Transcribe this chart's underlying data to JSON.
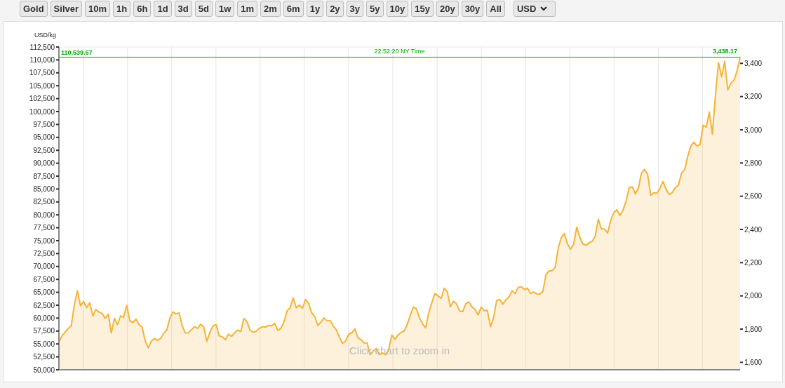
{
  "chart_data": {
    "type": "area",
    "ylabel": "USD/kg",
    "categories": [
      null,
      null,
      null,
      null,
      null,
      null,
      null,
      null,
      null,
      null,
      null,
      null,
      null,
      null,
      null,
      null,
      null,
      null,
      null,
      null,
      null,
      null,
      null,
      null,
      null,
      null,
      null,
      null,
      null,
      null,
      null,
      null,
      null,
      null,
      null,
      null,
      null,
      null,
      null,
      null,
      null,
      null,
      null,
      null,
      null,
      null,
      null,
      null,
      null,
      null,
      null,
      null,
      null,
      null,
      null,
      null,
      null,
      null,
      null,
      null,
      null,
      null,
      null,
      null,
      null,
      null,
      null,
      null,
      null,
      null,
      null,
      null,
      null,
      null,
      null,
      null,
      null,
      null,
      null,
      null,
      null,
      null,
      null,
      null,
      null,
      null,
      null,
      null,
      null,
      null,
      null,
      null,
      null,
      null,
      null,
      null,
      null,
      null,
      null,
      null,
      null,
      null,
      null,
      null,
      null,
      null,
      null,
      null,
      null,
      null,
      null,
      null,
      null,
      null,
      null,
      null,
      null,
      null,
      null,
      null,
      null,
      null,
      null,
      null,
      null,
      null,
      null,
      null,
      null,
      null,
      null,
      null,
      null,
      null,
      null,
      null,
      null,
      null,
      null,
      null,
      null,
      null,
      null,
      null,
      null,
      null,
      null,
      null,
      null,
      null,
      null,
      null,
      null,
      null,
      null,
      null,
      null,
      null,
      null,
      null,
      null,
      null,
      null,
      null,
      null,
      null,
      null,
      null,
      null,
      null,
      null,
      null,
      null,
      null,
      null,
      null,
      null,
      null,
      null,
      null,
      null,
      null,
      null,
      null,
      null,
      null,
      null,
      null,
      null,
      null,
      null,
      null,
      null,
      null,
      null,
      null,
      null,
      null,
      null,
      null,
      null,
      null,
      null,
      null,
      null,
      null,
      null,
      null,
      null,
      null,
      null,
      null,
      null,
      null,
      null,
      null,
      null,
      null,
      null,
      null,
      null,
      null
    ],
    "series": [
      {
        "color": "#f5b335",
        "values": [
          55430,
          56550,
          57280,
          58010,
          58490,
          62620,
          65280,
          62370,
          63200,
          62030,
          62960,
          60430,
          61650,
          61160,
          60920,
          59950,
          60770,
          57130,
          59950,
          58730,
          60430,
          60190,
          62470,
          59460,
          59120,
          59800,
          58730,
          58250,
          55580,
          54220,
          55580,
          56070,
          55680,
          56070,
          57040,
          57670,
          60040,
          61160,
          60820,
          61010,
          58490,
          57130,
          57180,
          57760,
          58350,
          58010,
          58830,
          58250,
          55480,
          57280,
          58490,
          58730,
          56550,
          56400,
          55820,
          56890,
          56450,
          57130,
          57670,
          57380,
          59950,
          59320,
          57620,
          57280,
          57420,
          58010,
          58350,
          58250,
          58590,
          58490,
          58980,
          57620,
          58010,
          59220,
          61400,
          61980,
          63930,
          61980,
          62520,
          61890,
          63590,
          62860,
          61010,
          60290,
          58590,
          59220,
          60040,
          59460,
          59560,
          58490,
          57760,
          56310,
          55090,
          55580,
          56890,
          57130,
          57910,
          56210,
          55820,
          55190,
          55190,
          52910,
          53640,
          54120,
          52910,
          53250,
          52910,
          53880,
          56740,
          55890,
          56740,
          57250,
          57500,
          58760,
          60520,
          62130,
          61770,
          60010,
          58860,
          58100,
          61120,
          63030,
          64790,
          64290,
          63790,
          65800,
          65050,
          62180,
          63280,
          62780,
          61370,
          61270,
          62780,
          63130,
          62180,
          61670,
          60620,
          62130,
          61420,
          61520,
          58350,
          60010,
          63390,
          63640,
          62680,
          63540,
          64040,
          65300,
          64790,
          65950,
          66050,
          65550,
          65800,
          64790,
          65050,
          64690,
          64640,
          65150,
          68320,
          69170,
          69170,
          69830,
          73600,
          75610,
          76370,
          74350,
          73350,
          74350,
          77630,
          75610,
          74350,
          74100,
          74610,
          74860,
          75860,
          79140,
          77270,
          77270,
          76470,
          78880,
          80390,
          81000,
          79890,
          80900,
          82660,
          85270,
          85430,
          84070,
          85170,
          88090,
          88800,
          87840,
          83770,
          84270,
          84170,
          85170,
          86430,
          84920,
          83920,
          84320,
          85270,
          85780,
          88090,
          88700,
          91310,
          93330,
          94080,
          93330,
          93580,
          97350,
          97000,
          99920,
          95640,
          103190,
          109480,
          106710,
          109730,
          104200,
          105450,
          106060,
          107820,
          110540
        ]
      }
    ],
    "ylim": [
      50000,
      112500
    ],
    "yticks": [
      {
        "value": 50000,
        "label": "50,000"
      },
      {
        "value": 52500,
        "label": "52,500"
      },
      {
        "value": 55000,
        "label": "55,000"
      },
      {
        "value": 57500,
        "label": "57,500"
      },
      {
        "value": 60000,
        "label": "60,000"
      },
      {
        "value": 62500,
        "label": "62,500"
      },
      {
        "value": 65000,
        "label": "65,000"
      },
      {
        "value": 67500,
        "label": "67,500"
      },
      {
        "value": 70000,
        "label": "70,000"
      },
      {
        "value": 72500,
        "label": "72,500"
      },
      {
        "value": 75000,
        "label": "75,000"
      },
      {
        "value": 77500,
        "label": "77,500"
      },
      {
        "value": 80000,
        "label": "80,000"
      },
      {
        "value": 82500,
        "label": "82,500"
      },
      {
        "value": 85000,
        "label": "85,000"
      },
      {
        "value": 87500,
        "label": "87,500"
      },
      {
        "value": 90000,
        "label": "90,000"
      },
      {
        "value": 92500,
        "label": "92,500"
      },
      {
        "value": 95000,
        "label": "95,000"
      },
      {
        "value": 97500,
        "label": "97,500"
      },
      {
        "value": 100000,
        "label": "100,000"
      },
      {
        "value": 102500,
        "label": "102,500"
      },
      {
        "value": 105000,
        "label": "105,000"
      },
      {
        "value": 107500,
        "label": "107,500"
      },
      {
        "value": 110000,
        "label": "110,000"
      },
      {
        "value": 112500,
        "label": "112,500"
      }
    ],
    "y2lim": [
      1555.2,
      3498.4
    ],
    "y2ticks": [
      {
        "value": 1600,
        "label": "1,600"
      },
      {
        "value": 1800,
        "label": "1,800"
      },
      {
        "value": 2000,
        "label": "2,000"
      },
      {
        "value": 2200,
        "label": "2,200"
      },
      {
        "value": 2400,
        "label": "2,400"
      },
      {
        "value": 2600,
        "label": "2,600"
      },
      {
        "value": 2800,
        "label": "2,800"
      },
      {
        "value": 3000,
        "label": "3,000"
      },
      {
        "value": 3200,
        "label": "3,200"
      },
      {
        "value": 3400,
        "label": "3,400"
      }
    ],
    "ref_lines": [
      {
        "axis": "y",
        "value": 110539.57,
        "label": "110,539.57",
        "color": "#00aa00"
      }
    ],
    "annotations": [
      "Gold",
      "Silver",
      "10m",
      "1h",
      "6h",
      "1d",
      "3d",
      "5d",
      "1w",
      "1m",
      "2m",
      "6m",
      "1y",
      "2y",
      "3y",
      "5y",
      "10y",
      "15y",
      "20y",
      "30y",
      "All",
      "USD",
      "22:52:20 NY Time",
      "3,438.17",
      "Click chart to zoom in"
    ],
    "grid": true,
    "legend": false
  }
}
